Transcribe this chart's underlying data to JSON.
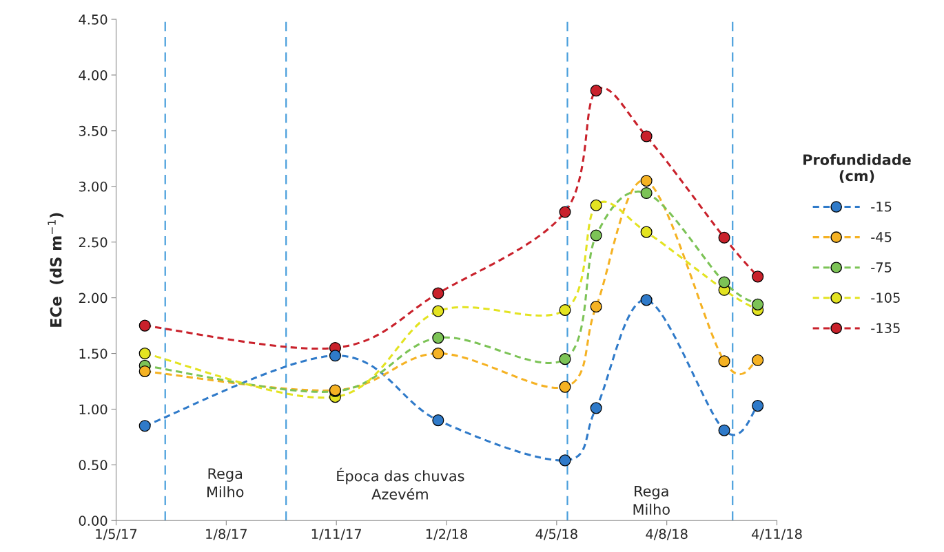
{
  "chart_data": {
    "type": "line",
    "ylabel": "ECe  (dS m$^{−1}$)",
    "legend_title": "Profundidade\n(cm)",
    "x": [
      "2017-05-25",
      "2017-10-31",
      "2018-01-25",
      "2018-05-11",
      "2018-06-06",
      "2018-07-18",
      "2018-09-21",
      "2018-10-19"
    ],
    "series": [
      {
        "name": "-15",
        "color": "#2f7ac9",
        "values": [
          0.85,
          1.48,
          0.9,
          0.54,
          1.01,
          1.98,
          0.81,
          1.03
        ]
      },
      {
        "name": "-45",
        "color": "#f5b223",
        "values": [
          1.34,
          1.17,
          1.5,
          1.2,
          1.92,
          3.05,
          1.43,
          1.44
        ]
      },
      {
        "name": "-75",
        "color": "#7cc356",
        "values": [
          1.39,
          1.16,
          1.64,
          1.45,
          2.56,
          2.94,
          2.14,
          1.94
        ]
      },
      {
        "name": "-105",
        "color": "#e3e321",
        "values": [
          1.5,
          1.11,
          1.88,
          1.89,
          2.83,
          2.59,
          2.07,
          1.89
        ]
      },
      {
        "name": "-135",
        "color": "#c9212b",
        "values": [
          1.75,
          1.55,
          2.04,
          2.77,
          3.86,
          3.45,
          2.54,
          2.19
        ]
      }
    ],
    "marker": "circle",
    "line_style": "dashed",
    "legend": "right",
    "grid": false,
    "xlim": [
      "2017-05-01",
      "2018-11-04"
    ],
    "xticks": [
      {
        "value": "2017-05-01",
        "label": "1/5/17"
      },
      {
        "value": "2017-08-01",
        "label": "1/8/17"
      },
      {
        "value": "2017-11-01",
        "label": "1/11/17"
      },
      {
        "value": "2018-02-01",
        "label": "1/2/18"
      },
      {
        "value": "2018-05-04",
        "label": "4/5/18"
      },
      {
        "value": "2018-08-04",
        "label": "4/8/18"
      },
      {
        "value": "2018-11-04",
        "label": "4/11/18"
      }
    ],
    "ylim": [
      0,
      4.5
    ],
    "yticks": [
      {
        "value": 0,
        "label": "0.00"
      },
      {
        "value": 0.5,
        "label": "0.50"
      },
      {
        "value": 1,
        "label": "1.00"
      },
      {
        "value": 1.5,
        "label": "1.50"
      },
      {
        "value": 2,
        "label": "2.00"
      },
      {
        "value": 2.5,
        "label": "2.50"
      },
      {
        "value": 3,
        "label": "3.00"
      },
      {
        "value": 3.5,
        "label": "3.50"
      },
      {
        "value": 4,
        "label": "4.00"
      },
      {
        "value": 4.5,
        "label": "4.50"
      }
    ],
    "ref_lines": [
      {
        "axis": "x",
        "value": "2017-06-11",
        "color": "#4a9fdc",
        "line_style": "dashed"
      },
      {
        "axis": "x",
        "value": "2017-09-20",
        "color": "#4a9fdc",
        "line_style": "dashed"
      },
      {
        "axis": "x",
        "value": "2018-05-13",
        "color": "#4a9fdc",
        "line_style": "dashed"
      },
      {
        "axis": "x",
        "value": "2018-09-28",
        "color": "#4a9fdc",
        "line_style": "dashed"
      }
    ],
    "annotations": [
      "Rega\nMilho",
      "Época das chuvas\nAzevém",
      "Rega\nMilho"
    ]
  }
}
